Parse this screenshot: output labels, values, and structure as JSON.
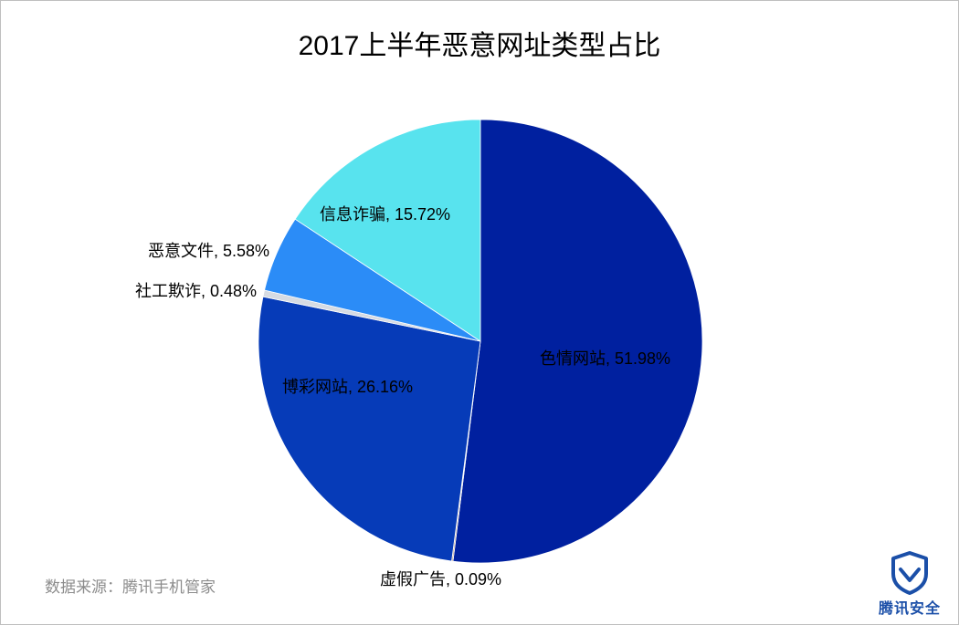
{
  "chart_data": {
    "type": "pie",
    "title": "2017上半年恶意网址类型占比",
    "slices": [
      {
        "label": "色情网站, 51.98%",
        "name": "色情网站",
        "value": 51.98,
        "color": "#00209f"
      },
      {
        "label": "虚假广告, 0.09%",
        "name": "虚假广告",
        "value": 0.09,
        "color": "#b08a6e"
      },
      {
        "label": "博彩网站, 26.16%",
        "name": "博彩网站",
        "value": 26.16,
        "color": "#063bb8"
      },
      {
        "label": "社工欺诈, 0.48%",
        "name": "社工欺诈",
        "value": 0.48,
        "color": "#d6dbe3"
      },
      {
        "label": "恶意文件, 5.58%",
        "name": "恶意文件",
        "value": 5.58,
        "color": "#2b8cf7"
      },
      {
        "label": "信息诈骗, 15.72%",
        "name": "信息诈骗",
        "value": 15.72,
        "color": "#58e3ee"
      }
    ]
  },
  "footer": {
    "source": "数据来源：腾讯手机管家",
    "brand": "腾讯安全"
  }
}
